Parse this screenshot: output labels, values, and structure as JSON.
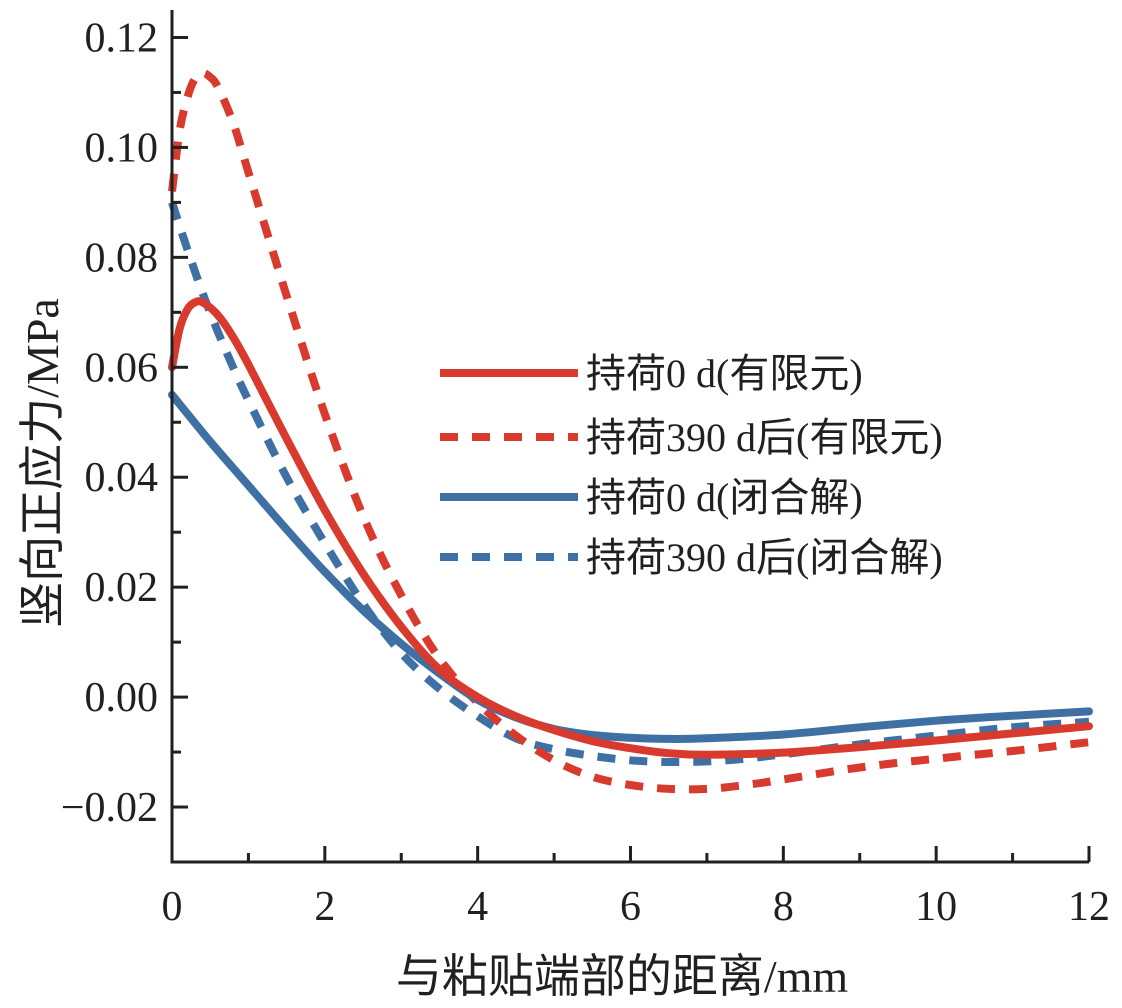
{
  "chart_data": {
    "type": "line",
    "title": "",
    "xlabel": "与粘贴端部的距离/mm",
    "ylabel": "竖向正应力/MPa",
    "xlim": [
      0,
      12
    ],
    "ylim": [
      -0.03,
      0.125
    ],
    "x_ticks": [
      0,
      2,
      4,
      6,
      8,
      10,
      12
    ],
    "x_tick_labels": [
      "0",
      "2",
      "4",
      "6",
      "8",
      "10",
      "12"
    ],
    "y_ticks": [
      -0.02,
      0.0,
      0.02,
      0.04,
      0.06,
      0.08,
      0.1,
      0.12
    ],
    "y_tick_labels": [
      "−0.02",
      "0.00",
      "0.02",
      "0.04",
      "0.06",
      "0.08",
      "0.10",
      "0.12"
    ],
    "grid": false,
    "legend_position": "center-right",
    "series": [
      {
        "name": "持荷0 d(有限元)",
        "color": "#d83b2e",
        "style": "solid",
        "x": [
          0,
          0.1,
          0.2,
          0.3,
          0.4,
          0.6,
          0.8,
          1.0,
          1.5,
          2.0,
          2.5,
          3.0,
          3.5,
          4.0,
          4.5,
          5.0,
          5.5,
          6.0,
          6.5,
          7.0,
          8.0,
          9.0,
          10.0,
          11.0,
          12.0
        ],
        "y": [
          0.06,
          0.067,
          0.0705,
          0.0718,
          0.0718,
          0.0695,
          0.0655,
          0.0605,
          0.047,
          0.034,
          0.0225,
          0.0128,
          0.005,
          0.0,
          -0.0035,
          -0.006,
          -0.008,
          -0.0093,
          -0.0102,
          -0.0105,
          -0.0101,
          -0.0091,
          -0.0079,
          -0.0066,
          -0.0053
        ]
      },
      {
        "name": "持荷390 d后(有限元)",
        "color": "#d83b2e",
        "style": "dashed",
        "x": [
          0,
          0.1,
          0.2,
          0.3,
          0.4,
          0.5,
          0.6,
          0.8,
          1.0,
          1.5,
          2.0,
          2.5,
          3.0,
          3.5,
          4.0,
          4.5,
          5.0,
          5.5,
          6.0,
          6.5,
          7.0,
          7.5,
          8.0,
          9.0,
          10.0,
          11.0,
          12.0
        ],
        "y": [
          0.092,
          0.103,
          0.109,
          0.1125,
          0.1135,
          0.1128,
          0.111,
          0.1045,
          0.0955,
          0.073,
          0.0515,
          0.033,
          0.0185,
          0.007,
          -0.001,
          -0.007,
          -0.0115,
          -0.0145,
          -0.016,
          -0.0167,
          -0.0167,
          -0.016,
          -0.015,
          -0.0128,
          -0.0112,
          -0.0098,
          -0.0082
        ]
      },
      {
        "name": "持荷0 d(闭合解)",
        "color": "#3e70a4",
        "style": "solid",
        "x": [
          0,
          0.5,
          1.0,
          1.5,
          2.0,
          2.5,
          3.0,
          3.5,
          4.0,
          4.5,
          5.0,
          5.5,
          6.0,
          6.5,
          7.0,
          8.0,
          9.0,
          10.0,
          11.0,
          12.0
        ],
        "y": [
          0.055,
          0.0465,
          0.0385,
          0.0305,
          0.0228,
          0.0158,
          0.0097,
          0.0043,
          -0.0005,
          -0.0037,
          -0.0058,
          -0.0069,
          -0.0074,
          -0.0076,
          -0.0075,
          -0.0068,
          -0.0055,
          -0.0043,
          -0.0034,
          -0.0026
        ]
      },
      {
        "name": "持荷390 d后(闭合解)",
        "color": "#3e70a4",
        "style": "dashed",
        "x": [
          0,
          0.2,
          0.4,
          0.6,
          0.8,
          1.0,
          1.5,
          2.0,
          2.5,
          3.0,
          3.5,
          4.0,
          4.5,
          5.0,
          5.5,
          6.0,
          6.5,
          7.0,
          7.5,
          8.0,
          9.0,
          10.0,
          11.0,
          12.0
        ],
        "y": [
          0.09,
          0.0815,
          0.0735,
          0.0665,
          0.06,
          0.054,
          0.04,
          0.028,
          0.017,
          0.008,
          0.0015,
          -0.0035,
          -0.0075,
          -0.0095,
          -0.0107,
          -0.0115,
          -0.0118,
          -0.0117,
          -0.0112,
          -0.0104,
          -0.0086,
          -0.007,
          -0.0055,
          -0.0045
        ]
      }
    ]
  }
}
